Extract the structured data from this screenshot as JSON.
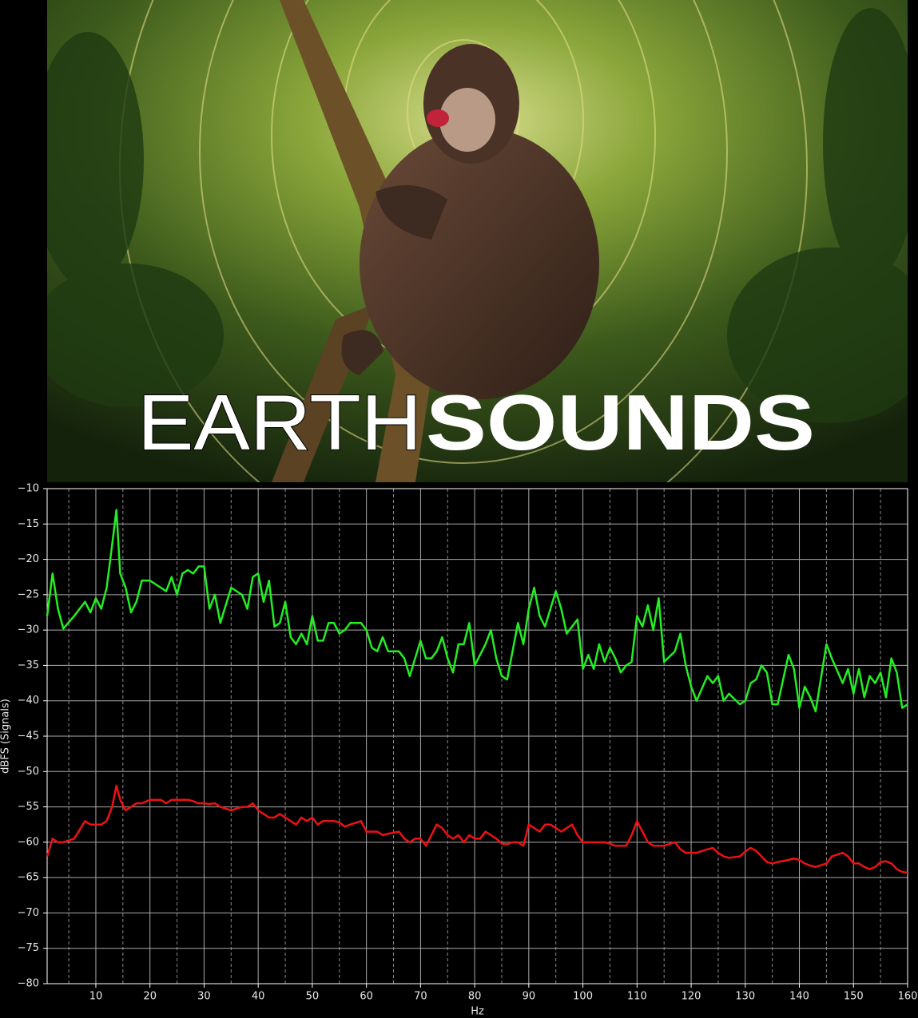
{
  "banner": {
    "title_light": "EARTH",
    "title_bold": "SOUNDS"
  },
  "chart_data": {
    "type": "line",
    "xlabel": "Hz",
    "ylabel": "dBFS (Signals)",
    "xlim": [
      1,
      160
    ],
    "ylim": [
      -80,
      -10
    ],
    "xticks": [
      10,
      20,
      30,
      40,
      50,
      60,
      70,
      80,
      90,
      100,
      110,
      120,
      130,
      140,
      150,
      160
    ],
    "x_minor_ticks": [
      5,
      15,
      25,
      35,
      45,
      55,
      65,
      75,
      85,
      95,
      105,
      115,
      125,
      135,
      145,
      155
    ],
    "yticks": [
      {
        "value": -10,
        "label": "−10"
      },
      {
        "value": -15,
        "label": "−15"
      },
      {
        "value": -20,
        "label": "−20"
      },
      {
        "value": -25,
        "label": "−25"
      },
      {
        "value": -30,
        "label": "−30"
      },
      {
        "value": -35,
        "label": "−35"
      },
      {
        "value": -40,
        "label": "−40"
      },
      {
        "value": -45,
        "label": "−45"
      },
      {
        "value": -50,
        "label": "−50"
      },
      {
        "value": -55,
        "label": "−55"
      },
      {
        "value": -60,
        "label": "−60"
      },
      {
        "value": -65,
        "label": "−65"
      },
      {
        "value": -70,
        "label": "−70"
      },
      {
        "value": -75,
        "label": "−75"
      },
      {
        "value": -80,
        "label": "−80"
      }
    ],
    "grid": true,
    "x": [
      1,
      2,
      3,
      4,
      6,
      8,
      9,
      10,
      11,
      12,
      13,
      13.8,
      14.5,
      15.5,
      16.5,
      17.5,
      18.5,
      20,
      22,
      23,
      24,
      25,
      26,
      27,
      28,
      29,
      30,
      31,
      32,
      33,
      35,
      37,
      38,
      39,
      40,
      41,
      42,
      43,
      44,
      45,
      46,
      47,
      48,
      49,
      50,
      51,
      52,
      53,
      54,
      55,
      56,
      57,
      59,
      60,
      61,
      62,
      63,
      64,
      66,
      67,
      68,
      69,
      70,
      71,
      72,
      73,
      74,
      75,
      76,
      77,
      78,
      79,
      80,
      81,
      82,
      83,
      84,
      85,
      86,
      87,
      88,
      89,
      90,
      91,
      92,
      93,
      94,
      95,
      96,
      97,
      98,
      99,
      100,
      101,
      102,
      103,
      104,
      105,
      106,
      107,
      108,
      109,
      110,
      111,
      112,
      113,
      114,
      115,
      117,
      118,
      119,
      120,
      121,
      123,
      124,
      125,
      126,
      127,
      129,
      130,
      131,
      132,
      133,
      134,
      135,
      136,
      138,
      139,
      140,
      141,
      142,
      143,
      145,
      146,
      148,
      149,
      150,
      151,
      152,
      153,
      154,
      155,
      156,
      157,
      158,
      159,
      160
    ],
    "series": [
      {
        "color": "#22ee22",
        "values": [
          -28,
          -22,
          -27,
          -29.8,
          -28,
          -26,
          -27.5,
          -25.5,
          -27,
          -24,
          -18,
          -13,
          -22,
          -24,
          -27.5,
          -26,
          -23,
          -23,
          -24,
          -24.5,
          -22.5,
          -25,
          -22,
          -21.5,
          -22,
          -21,
          -21,
          -27,
          -25,
          -29,
          -24,
          -25,
          -27,
          -22.5,
          -22,
          -26,
          -23,
          -29.5,
          -29,
          -26,
          -31,
          -32,
          -30.5,
          -32,
          -28,
          -31.5,
          -31.5,
          -29,
          -29,
          -30.5,
          -30,
          -29,
          -29,
          -30,
          -32.5,
          -33,
          -31,
          -33,
          -33,
          -34,
          -36.5,
          -34,
          -31.5,
          -34,
          -34,
          -33,
          -31,
          -34,
          -36,
          -32,
          -32,
          -29,
          -35,
          -33.5,
          -32,
          -30,
          -34,
          -36.5,
          -37,
          -33,
          -29,
          -32,
          -27,
          -24,
          -28,
          -29.5,
          -27,
          -24.5,
          -27,
          -30.5,
          -29.5,
          -28.5,
          -35.5,
          -33.5,
          -35.5,
          -32,
          -34.5,
          -32.5,
          -34,
          -36,
          -35,
          -34.5,
          -28,
          -29.5,
          -26.5,
          -30,
          -25.5,
          -34.5,
          -33,
          -30.5,
          -35,
          -38,
          -40,
          -36.5,
          -37.5,
          -36.5,
          -40,
          -39,
          -40.5,
          -40,
          -37.5,
          -37,
          -35,
          -36,
          -40.5,
          -40.5,
          -33.5,
          -35.5,
          -41,
          -38,
          -39.5,
          -41.5,
          -32,
          -34,
          -37.5,
          -35.5,
          -39,
          -35.5,
          -39.5,
          -36.5,
          -37.5,
          -36,
          -39.5,
          -34,
          -36,
          -41,
          -40.5
        ]
      },
      {
        "color": "#ee1111",
        "values": [
          -62,
          -59.5,
          -60,
          -60,
          -59.5,
          -57,
          -57.5,
          -57.5,
          -57.5,
          -57,
          -55,
          -52,
          -54,
          -55.5,
          -55,
          -54.5,
          -54.5,
          -54,
          -54,
          -54.5,
          -54,
          -54,
          -54,
          -54,
          -54.2,
          -54.5,
          -54.5,
          -54.6,
          -54.5,
          -55,
          -55.5,
          -55,
          -55,
          -54.5,
          -55.5,
          -56,
          -56.5,
          -56.5,
          -56,
          -56.5,
          -57,
          -57.5,
          -56.5,
          -57,
          -56.5,
          -57.5,
          -57,
          -57,
          -57,
          -57.2,
          -57.8,
          -57.5,
          -57,
          -58.5,
          -58.5,
          -58.5,
          -59,
          -58.8,
          -58.5,
          -59.5,
          -60,
          -59.5,
          -59.5,
          -60.5,
          -59,
          -57.5,
          -58,
          -59,
          -59.5,
          -59,
          -60,
          -59,
          -59.5,
          -59.5,
          -58.5,
          -59,
          -59.5,
          -60.2,
          -60.3,
          -60,
          -60,
          -60.5,
          -57.5,
          -58,
          -58.5,
          -57.5,
          -57.5,
          -58,
          -58.5,
          -58,
          -57.5,
          -59,
          -60,
          -60,
          -60,
          -60,
          -60,
          -60.2,
          -60.5,
          -60.5,
          -60.5,
          -59,
          -57,
          -58.5,
          -60,
          -60.5,
          -60.5,
          -60.5,
          -60,
          -61,
          -61.5,
          -61.5,
          -61.5,
          -61,
          -60.8,
          -61.5,
          -62,
          -62.2,
          -62,
          -61.3,
          -60.8,
          -61.2,
          -62,
          -62.8,
          -63,
          -62.8,
          -62.5,
          -62.3,
          -62.5,
          -63,
          -63.3,
          -63.5,
          -63,
          -62,
          -61.5,
          -62,
          -63,
          -63,
          -63.5,
          -63.8,
          -63.5,
          -62.8,
          -62.7,
          -63,
          -63.8,
          -64.2,
          -64.3
        ]
      }
    ]
  }
}
